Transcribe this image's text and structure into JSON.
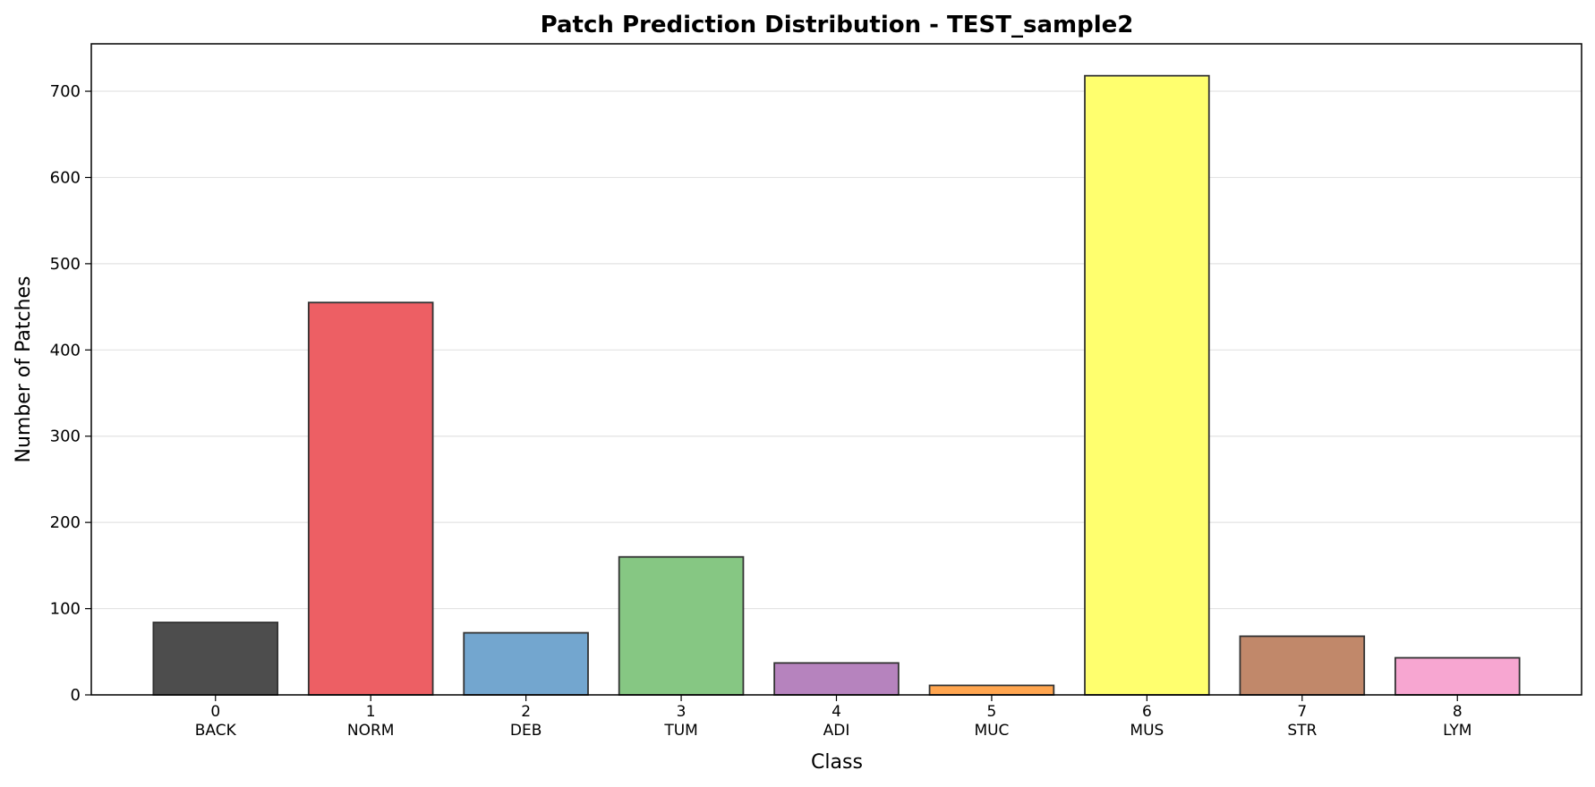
{
  "chart_data": {
    "type": "bar",
    "title": "Patch Prediction Distribution - TEST_sample2",
    "xlabel": "Class",
    "ylabel": "Number of Patches",
    "ylim": [
      0,
      755
    ],
    "yticks": [
      0,
      100,
      200,
      300,
      400,
      500,
      600,
      700
    ],
    "grid": "y",
    "categories": [
      {
        "index": "0",
        "name": "BACK"
      },
      {
        "index": "1",
        "name": "NORM"
      },
      {
        "index": "2",
        "name": "DEB"
      },
      {
        "index": "3",
        "name": "TUM"
      },
      {
        "index": "4",
        "name": "ADI"
      },
      {
        "index": "5",
        "name": "MUC"
      },
      {
        "index": "6",
        "name": "MUS"
      },
      {
        "index": "7",
        "name": "STR"
      },
      {
        "index": "8",
        "name": "LYM"
      }
    ],
    "values": [
      84,
      455,
      72,
      160,
      37,
      11,
      718,
      68,
      43
    ],
    "colors": [
      "#4d4d4d",
      "#ed5f64",
      "#73a6cf",
      "#86c783",
      "#b683be",
      "#ffa54f",
      "#ffff6e",
      "#c1886a",
      "#f7a6d1"
    ],
    "edge_color": "#333333"
  }
}
